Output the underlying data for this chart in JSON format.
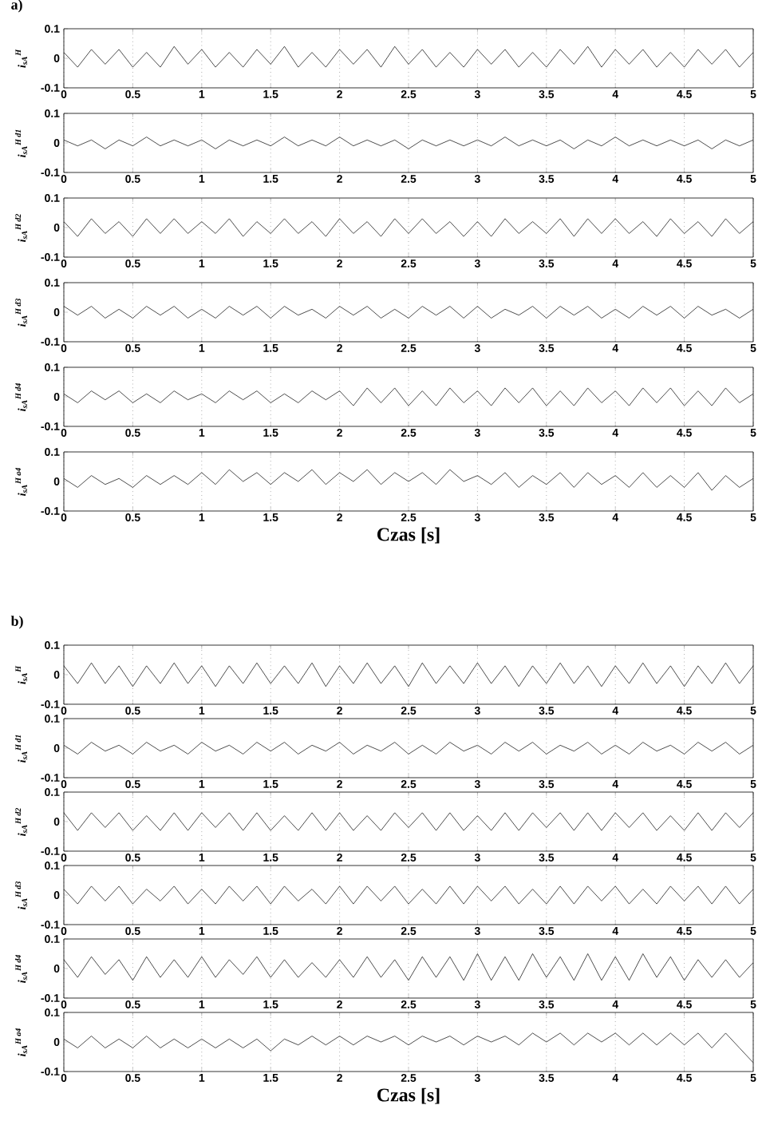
{
  "chart_data": [
    {
      "type": "line",
      "title": "a)",
      "ylabel": "i$_{sA}$$^{H}$",
      "xlim": [
        0,
        5
      ],
      "ylim": [
        -0.1,
        0.1
      ],
      "xticks": [
        0,
        0.5,
        1,
        1.5,
        2,
        2.5,
        3,
        3.5,
        4,
        4.5,
        5
      ],
      "yticks": [
        -0.1,
        0,
        0.1
      ],
      "grid": "x",
      "marker": "none",
      "line_style": "solid",
      "x": [
        0,
        0.1,
        0.2,
        0.3,
        0.4,
        0.5,
        0.6,
        0.7,
        0.8,
        0.9,
        1,
        1.1,
        1.2,
        1.3,
        1.4,
        1.5,
        1.6,
        1.7,
        1.8,
        1.9,
        2,
        2.1,
        2.2,
        2.3,
        2.4,
        2.5,
        2.6,
        2.7,
        2.8,
        2.9,
        3,
        3.1,
        3.2,
        3.3,
        3.4,
        3.5,
        3.6,
        3.7,
        3.8,
        3.9,
        4,
        4.1,
        4.2,
        4.3,
        4.4,
        4.5,
        4.6,
        4.7,
        4.8,
        4.9,
        5
      ],
      "series": [
        {
          "color": "#000000",
          "values": [
            0.02,
            -0.03,
            0.03,
            -0.02,
            0.03,
            -0.03,
            0.02,
            -0.03,
            0.04,
            -0.02,
            0.03,
            -0.03,
            0.02,
            -0.03,
            0.03,
            -0.02,
            0.04,
            -0.03,
            0.02,
            -0.03,
            0.03,
            -0.02,
            0.03,
            -0.03,
            0.04,
            -0.02,
            0.03,
            -0.03,
            0.02,
            -0.03,
            0.03,
            -0.02,
            0.03,
            -0.03,
            0.02,
            -0.03,
            0.03,
            -0.02,
            0.04,
            -0.03,
            0.03,
            -0.02,
            0.03,
            -0.03,
            0.02,
            -0.03,
            0.03,
            -0.02,
            0.03,
            -0.03,
            0.02
          ]
        }
      ]
    },
    {
      "type": "line",
      "ylabel": "i$_{sA}$$^{H d1}$",
      "xlim": [
        0,
        5
      ],
      "ylim": [
        -0.1,
        0.1
      ],
      "xticks": [
        0,
        0.5,
        1,
        1.5,
        2,
        2.5,
        3,
        3.5,
        4,
        4.5,
        5
      ],
      "yticks": [
        -0.1,
        0,
        0.1
      ],
      "grid": "x",
      "marker": "none",
      "line_style": "solid",
      "x": [
        0,
        0.1,
        0.2,
        0.3,
        0.4,
        0.5,
        0.6,
        0.7,
        0.8,
        0.9,
        1,
        1.1,
        1.2,
        1.3,
        1.4,
        1.5,
        1.6,
        1.7,
        1.8,
        1.9,
        2,
        2.1,
        2.2,
        2.3,
        2.4,
        2.5,
        2.6,
        2.7,
        2.8,
        2.9,
        3,
        3.1,
        3.2,
        3.3,
        3.4,
        3.5,
        3.6,
        3.7,
        3.8,
        3.9,
        4,
        4.1,
        4.2,
        4.3,
        4.4,
        4.5,
        4.6,
        4.7,
        4.8,
        4.9,
        5
      ],
      "series": [
        {
          "color": "#000000",
          "values": [
            0.01,
            -0.01,
            0.01,
            -0.02,
            0.01,
            -0.01,
            0.02,
            -0.01,
            0.01,
            -0.01,
            0.01,
            -0.02,
            0.01,
            -0.01,
            0.01,
            -0.01,
            0.02,
            -0.01,
            0.01,
            -0.01,
            0.02,
            -0.01,
            0.01,
            -0.01,
            0.01,
            -0.02,
            0.01,
            -0.01,
            0.01,
            -0.01,
            0.01,
            -0.01,
            0.02,
            -0.01,
            0.01,
            -0.01,
            0.01,
            -0.02,
            0.01,
            -0.01,
            0.02,
            -0.01,
            0.01,
            -0.01,
            0.01,
            -0.01,
            0.01,
            -0.02,
            0.01,
            -0.01,
            0.01
          ]
        }
      ]
    },
    {
      "type": "line",
      "ylabel": "i$_{sA}$$^{H d2}$",
      "xlim": [
        0,
        5
      ],
      "ylim": [
        -0.1,
        0.1
      ],
      "xticks": [
        0,
        0.5,
        1,
        1.5,
        2,
        2.5,
        3,
        3.5,
        4,
        4.5,
        5
      ],
      "yticks": [
        -0.1,
        0,
        0.1
      ],
      "grid": "x",
      "marker": "none",
      "line_style": "solid",
      "x": [
        0,
        0.1,
        0.2,
        0.3,
        0.4,
        0.5,
        0.6,
        0.7,
        0.8,
        0.9,
        1,
        1.1,
        1.2,
        1.3,
        1.4,
        1.5,
        1.6,
        1.7,
        1.8,
        1.9,
        2,
        2.1,
        2.2,
        2.3,
        2.4,
        2.5,
        2.6,
        2.7,
        2.8,
        2.9,
        3,
        3.1,
        3.2,
        3.3,
        3.4,
        3.5,
        3.6,
        3.7,
        3.8,
        3.9,
        4,
        4.1,
        4.2,
        4.3,
        4.4,
        4.5,
        4.6,
        4.7,
        4.8,
        4.9,
        5
      ],
      "series": [
        {
          "color": "#000000",
          "values": [
            0.02,
            -0.03,
            0.03,
            -0.02,
            0.02,
            -0.03,
            0.03,
            -0.02,
            0.03,
            -0.02,
            0.02,
            -0.02,
            0.03,
            -0.03,
            0.02,
            -0.02,
            0.03,
            -0.02,
            0.02,
            -0.03,
            0.03,
            -0.02,
            0.02,
            -0.03,
            0.03,
            -0.02,
            0.03,
            -0.02,
            0.02,
            -0.03,
            0.02,
            -0.03,
            0.03,
            -0.02,
            0.02,
            -0.02,
            0.03,
            -0.03,
            0.03,
            -0.02,
            0.03,
            -0.02,
            0.02,
            -0.03,
            0.03,
            -0.02,
            0.02,
            -0.03,
            0.03,
            -0.02,
            0.02
          ]
        }
      ]
    },
    {
      "type": "line",
      "ylabel": "i$_{sA}$$^{H d3}$",
      "xlim": [
        0,
        5
      ],
      "ylim": [
        -0.1,
        0.1
      ],
      "xticks": [
        0,
        0.5,
        1,
        1.5,
        2,
        2.5,
        3,
        3.5,
        4,
        4.5,
        5
      ],
      "yticks": [
        -0.1,
        0,
        0.1
      ],
      "grid": "x",
      "marker": "none",
      "line_style": "solid",
      "x": [
        0,
        0.1,
        0.2,
        0.3,
        0.4,
        0.5,
        0.6,
        0.7,
        0.8,
        0.9,
        1,
        1.1,
        1.2,
        1.3,
        1.4,
        1.5,
        1.6,
        1.7,
        1.8,
        1.9,
        2,
        2.1,
        2.2,
        2.3,
        2.4,
        2.5,
        2.6,
        2.7,
        2.8,
        2.9,
        3,
        3.1,
        3.2,
        3.3,
        3.4,
        3.5,
        3.6,
        3.7,
        3.8,
        3.9,
        4,
        4.1,
        4.2,
        4.3,
        4.4,
        4.5,
        4.6,
        4.7,
        4.8,
        4.9,
        5
      ],
      "series": [
        {
          "color": "#000000",
          "values": [
            0.02,
            -0.01,
            0.02,
            -0.02,
            0.01,
            -0.02,
            0.02,
            -0.01,
            0.02,
            -0.02,
            0.01,
            -0.02,
            0.02,
            -0.01,
            0.02,
            -0.02,
            0.02,
            -0.01,
            0.01,
            -0.02,
            0.02,
            -0.01,
            0.02,
            -0.02,
            0.01,
            -0.02,
            0.02,
            -0.01,
            0.02,
            -0.02,
            0.02,
            -0.02,
            0.01,
            -0.01,
            0.02,
            -0.02,
            0.02,
            -0.01,
            0.02,
            -0.02,
            0.01,
            -0.02,
            0.02,
            -0.01,
            0.02,
            -0.02,
            0.02,
            -0.01,
            0.01,
            -0.02,
            0.01
          ]
        }
      ]
    },
    {
      "type": "line",
      "ylabel": "i$_{sA}$$^{H d4}$",
      "xlim": [
        0,
        5
      ],
      "ylim": [
        -0.1,
        0.1
      ],
      "xticks": [
        0,
        0.5,
        1,
        1.5,
        2,
        2.5,
        3,
        3.5,
        4,
        4.5,
        5
      ],
      "yticks": [
        -0.1,
        0,
        0.1
      ],
      "grid": "x",
      "marker": "none",
      "line_style": "solid",
      "x": [
        0,
        0.1,
        0.2,
        0.3,
        0.4,
        0.5,
        0.6,
        0.7,
        0.8,
        0.9,
        1,
        1.1,
        1.2,
        1.3,
        1.4,
        1.5,
        1.6,
        1.7,
        1.8,
        1.9,
        2,
        2.1,
        2.2,
        2.3,
        2.4,
        2.5,
        2.6,
        2.7,
        2.8,
        2.9,
        3,
        3.1,
        3.2,
        3.3,
        3.4,
        3.5,
        3.6,
        3.7,
        3.8,
        3.9,
        4,
        4.1,
        4.2,
        4.3,
        4.4,
        4.5,
        4.6,
        4.7,
        4.8,
        4.9,
        5
      ],
      "series": [
        {
          "color": "#000000",
          "values": [
            0.01,
            -0.02,
            0.02,
            -0.01,
            0.02,
            -0.02,
            0.01,
            -0.02,
            0.02,
            -0.01,
            0.01,
            -0.02,
            0.02,
            -0.01,
            0.02,
            -0.02,
            0.01,
            -0.02,
            0.02,
            -0.01,
            0.02,
            -0.03,
            0.03,
            -0.02,
            0.03,
            -0.03,
            0.02,
            -0.03,
            0.03,
            -0.02,
            0.02,
            -0.03,
            0.03,
            -0.02,
            0.03,
            -0.03,
            0.02,
            -0.03,
            0.03,
            -0.02,
            0.02,
            -0.03,
            0.03,
            -0.02,
            0.03,
            -0.03,
            0.02,
            -0.03,
            0.03,
            -0.02,
            0.01
          ]
        }
      ]
    },
    {
      "type": "line",
      "ylabel": "i$_{sA}$$^{H a4}$",
      "xlabel": "Czas [s]",
      "xlim": [
        0,
        5
      ],
      "ylim": [
        -0.1,
        0.1
      ],
      "xticks": [
        0,
        0.5,
        1,
        1.5,
        2,
        2.5,
        3,
        3.5,
        4,
        4.5,
        5
      ],
      "yticks": [
        -0.1,
        0,
        0.1
      ],
      "grid": "x",
      "marker": "none",
      "line_style": "solid",
      "x": [
        0,
        0.1,
        0.2,
        0.3,
        0.4,
        0.5,
        0.6,
        0.7,
        0.8,
        0.9,
        1,
        1.1,
        1.2,
        1.3,
        1.4,
        1.5,
        1.6,
        1.7,
        1.8,
        1.9,
        2,
        2.1,
        2.2,
        2.3,
        2.4,
        2.5,
        2.6,
        2.7,
        2.8,
        2.9,
        3,
        3.1,
        3.2,
        3.3,
        3.4,
        3.5,
        3.6,
        3.7,
        3.8,
        3.9,
        4,
        4.1,
        4.2,
        4.3,
        4.4,
        4.5,
        4.6,
        4.7,
        4.8,
        4.9,
        5
      ],
      "series": [
        {
          "color": "#000000",
          "values": [
            0.01,
            -0.02,
            0.02,
            -0.01,
            0.01,
            -0.02,
            0.02,
            -0.01,
            0.02,
            -0.01,
            0.03,
            -0.01,
            0.04,
            0.0,
            0.03,
            -0.01,
            0.03,
            0.0,
            0.04,
            -0.01,
            0.03,
            0.0,
            0.04,
            -0.01,
            0.03,
            0.0,
            0.03,
            -0.01,
            0.04,
            0.0,
            0.02,
            -0.01,
            0.03,
            -0.02,
            0.02,
            -0.01,
            0.03,
            -0.02,
            0.03,
            -0.01,
            0.02,
            -0.02,
            0.03,
            -0.02,
            0.02,
            -0.02,
            0.03,
            -0.03,
            0.02,
            -0.02,
            0.01
          ]
        }
      ]
    },
    {
      "type": "line",
      "title": "b)",
      "ylabel": "i$_{sA}$$^{H}$",
      "xlim": [
        0,
        5
      ],
      "ylim": [
        -0.1,
        0.1
      ],
      "xticks": [
        0,
        0.5,
        1,
        1.5,
        2,
        2.5,
        3,
        3.5,
        4,
        4.5,
        5
      ],
      "yticks": [
        -0.1,
        0,
        0.1
      ],
      "grid": "x",
      "marker": "none",
      "line_style": "solid",
      "x": [
        0,
        0.1,
        0.2,
        0.3,
        0.4,
        0.5,
        0.6,
        0.7,
        0.8,
        0.9,
        1,
        1.1,
        1.2,
        1.3,
        1.4,
        1.5,
        1.6,
        1.7,
        1.8,
        1.9,
        2,
        2.1,
        2.2,
        2.3,
        2.4,
        2.5,
        2.6,
        2.7,
        2.8,
        2.9,
        3,
        3.1,
        3.2,
        3.3,
        3.4,
        3.5,
        3.6,
        3.7,
        3.8,
        3.9,
        4,
        4.1,
        4.2,
        4.3,
        4.4,
        4.5,
        4.6,
        4.7,
        4.8,
        4.9,
        5
      ],
      "series": [
        {
          "color": "#000000",
          "values": [
            0.03,
            -0.03,
            0.04,
            -0.03,
            0.03,
            -0.04,
            0.03,
            -0.03,
            0.04,
            -0.03,
            0.03,
            -0.04,
            0.03,
            -0.03,
            0.04,
            -0.03,
            0.03,
            -0.03,
            0.04,
            -0.04,
            0.03,
            -0.03,
            0.04,
            -0.03,
            0.03,
            -0.04,
            0.04,
            -0.03,
            0.03,
            -0.03,
            0.04,
            -0.03,
            0.03,
            -0.04,
            0.03,
            -0.03,
            0.04,
            -0.03,
            0.03,
            -0.04,
            0.03,
            -0.03,
            0.04,
            -0.03,
            0.03,
            -0.04,
            0.03,
            -0.03,
            0.04,
            -0.03,
            0.03
          ]
        }
      ]
    },
    {
      "type": "line",
      "ylabel": "i$_{sA}$$^{H d1}$",
      "xlim": [
        0,
        5
      ],
      "ylim": [
        -0.1,
        0.1
      ],
      "xticks": [
        0,
        0.5,
        1,
        1.5,
        2,
        2.5,
        3,
        3.5,
        4,
        4.5,
        5
      ],
      "yticks": [
        -0.1,
        0,
        0.1
      ],
      "grid": "x",
      "marker": "none",
      "line_style": "solid",
      "x": [
        0,
        0.1,
        0.2,
        0.3,
        0.4,
        0.5,
        0.6,
        0.7,
        0.8,
        0.9,
        1,
        1.1,
        1.2,
        1.3,
        1.4,
        1.5,
        1.6,
        1.7,
        1.8,
        1.9,
        2,
        2.1,
        2.2,
        2.3,
        2.4,
        2.5,
        2.6,
        2.7,
        2.8,
        2.9,
        3,
        3.1,
        3.2,
        3.3,
        3.4,
        3.5,
        3.6,
        3.7,
        3.8,
        3.9,
        4,
        4.1,
        4.2,
        4.3,
        4.4,
        4.5,
        4.6,
        4.7,
        4.8,
        4.9,
        5
      ],
      "series": [
        {
          "color": "#000000",
          "values": [
            0.01,
            -0.02,
            0.02,
            -0.01,
            0.01,
            -0.02,
            0.02,
            -0.01,
            0.01,
            -0.02,
            0.02,
            -0.01,
            0.01,
            -0.02,
            0.02,
            -0.01,
            0.02,
            -0.02,
            0.01,
            -0.01,
            0.02,
            -0.02,
            0.01,
            -0.01,
            0.02,
            -0.02,
            0.01,
            -0.02,
            0.02,
            -0.01,
            0.01,
            -0.02,
            0.02,
            -0.01,
            0.02,
            -0.02,
            0.01,
            -0.01,
            0.02,
            -0.02,
            0.01,
            -0.02,
            0.02,
            -0.01,
            0.01,
            -0.02,
            0.02,
            -0.01,
            0.02,
            -0.02,
            0.01
          ]
        }
      ]
    },
    {
      "type": "line",
      "ylabel": "i$_{sA}$$^{H d2}$",
      "xlim": [
        0,
        5
      ],
      "ylim": [
        -0.1,
        0.1
      ],
      "xticks": [
        0,
        0.5,
        1,
        1.5,
        2,
        2.5,
        3,
        3.5,
        4,
        4.5,
        5
      ],
      "yticks": [
        -0.1,
        0,
        0.1
      ],
      "grid": "x",
      "marker": "none",
      "line_style": "solid",
      "x": [
        0,
        0.1,
        0.2,
        0.3,
        0.4,
        0.5,
        0.6,
        0.7,
        0.8,
        0.9,
        1,
        1.1,
        1.2,
        1.3,
        1.4,
        1.5,
        1.6,
        1.7,
        1.8,
        1.9,
        2,
        2.1,
        2.2,
        2.3,
        2.4,
        2.5,
        2.6,
        2.7,
        2.8,
        2.9,
        3,
        3.1,
        3.2,
        3.3,
        3.4,
        3.5,
        3.6,
        3.7,
        3.8,
        3.9,
        4,
        4.1,
        4.2,
        4.3,
        4.4,
        4.5,
        4.6,
        4.7,
        4.8,
        4.9,
        5
      ],
      "series": [
        {
          "color": "#000000",
          "values": [
            0.03,
            -0.03,
            0.03,
            -0.02,
            0.03,
            -0.03,
            0.02,
            -0.03,
            0.03,
            -0.03,
            0.03,
            -0.02,
            0.03,
            -0.03,
            0.03,
            -0.03,
            0.02,
            -0.03,
            0.03,
            -0.03,
            0.03,
            -0.03,
            0.02,
            -0.03,
            0.03,
            -0.02,
            0.03,
            -0.03,
            0.03,
            -0.03,
            0.02,
            -0.03,
            0.03,
            -0.03,
            0.03,
            -0.02,
            0.03,
            -0.03,
            0.03,
            -0.03,
            0.03,
            -0.02,
            0.03,
            -0.03,
            0.02,
            -0.03,
            0.03,
            -0.03,
            0.03,
            -0.02,
            0.03
          ]
        }
      ]
    },
    {
      "type": "line",
      "ylabel": "i$_{sA}$$^{H d3}$",
      "xlim": [
        0,
        5
      ],
      "ylim": [
        -0.1,
        0.1
      ],
      "xticks": [
        0,
        0.5,
        1,
        1.5,
        2,
        2.5,
        3,
        3.5,
        4,
        4.5,
        5
      ],
      "yticks": [
        -0.1,
        0,
        0.1
      ],
      "grid": "x",
      "marker": "none",
      "line_style": "solid",
      "x": [
        0,
        0.1,
        0.2,
        0.3,
        0.4,
        0.5,
        0.6,
        0.7,
        0.8,
        0.9,
        1,
        1.1,
        1.2,
        1.3,
        1.4,
        1.5,
        1.6,
        1.7,
        1.8,
        1.9,
        2,
        2.1,
        2.2,
        2.3,
        2.4,
        2.5,
        2.6,
        2.7,
        2.8,
        2.9,
        3,
        3.1,
        3.2,
        3.3,
        3.4,
        3.5,
        3.6,
        3.7,
        3.8,
        3.9,
        4,
        4.1,
        4.2,
        4.3,
        4.4,
        4.5,
        4.6,
        4.7,
        4.8,
        4.9,
        5
      ],
      "series": [
        {
          "color": "#000000",
          "values": [
            0.02,
            -0.03,
            0.03,
            -0.02,
            0.03,
            -0.03,
            0.02,
            -0.02,
            0.03,
            -0.03,
            0.02,
            -0.03,
            0.03,
            -0.02,
            0.03,
            -0.03,
            0.03,
            -0.02,
            0.02,
            -0.03,
            0.03,
            -0.03,
            0.03,
            -0.02,
            0.03,
            -0.03,
            0.02,
            -0.03,
            0.03,
            -0.03,
            0.03,
            -0.02,
            0.03,
            -0.03,
            0.02,
            -0.03,
            0.03,
            -0.03,
            0.03,
            -0.02,
            0.03,
            -0.03,
            0.02,
            -0.03,
            0.03,
            -0.02,
            0.03,
            -0.03,
            0.03,
            -0.03,
            0.02
          ]
        }
      ]
    },
    {
      "type": "line",
      "ylabel": "i$_{sA}$$^{H d4}$",
      "xlim": [
        0,
        5
      ],
      "ylim": [
        -0.1,
        0.1
      ],
      "xticks": [
        0,
        0.5,
        1,
        1.5,
        2,
        2.5,
        3,
        3.5,
        4,
        4.5,
        5
      ],
      "yticks": [
        -0.1,
        0,
        0.1
      ],
      "grid": "x",
      "marker": "none",
      "line_style": "solid",
      "x": [
        0,
        0.1,
        0.2,
        0.3,
        0.4,
        0.5,
        0.6,
        0.7,
        0.8,
        0.9,
        1,
        1.1,
        1.2,
        1.3,
        1.4,
        1.5,
        1.6,
        1.7,
        1.8,
        1.9,
        2,
        2.1,
        2.2,
        2.3,
        2.4,
        2.5,
        2.6,
        2.7,
        2.8,
        2.9,
        3,
        3.1,
        3.2,
        3.3,
        3.4,
        3.5,
        3.6,
        3.7,
        3.8,
        3.9,
        4,
        4.1,
        4.2,
        4.3,
        4.4,
        4.5,
        4.6,
        4.7,
        4.8,
        4.9,
        5
      ],
      "series": [
        {
          "color": "#000000",
          "values": [
            0.03,
            -0.03,
            0.04,
            -0.02,
            0.03,
            -0.04,
            0.04,
            -0.03,
            0.03,
            -0.03,
            0.04,
            -0.03,
            0.03,
            -0.02,
            0.04,
            -0.03,
            0.03,
            -0.03,
            0.02,
            -0.03,
            0.03,
            -0.03,
            0.04,
            -0.03,
            0.03,
            -0.04,
            0.04,
            -0.03,
            0.04,
            -0.04,
            0.05,
            -0.04,
            0.04,
            -0.04,
            0.05,
            -0.03,
            0.04,
            -0.04,
            0.05,
            -0.04,
            0.04,
            -0.04,
            0.05,
            -0.03,
            0.04,
            -0.04,
            0.03,
            -0.03,
            0.03,
            -0.03,
            0.02
          ]
        }
      ]
    },
    {
      "type": "line",
      "ylabel": "i$_{sA}$$^{H a4}$",
      "xlabel": "Czas [s]",
      "xlim": [
        0,
        5
      ],
      "ylim": [
        -0.1,
        0.1
      ],
      "xticks": [
        0,
        0.5,
        1,
        1.5,
        2,
        2.5,
        3,
        3.5,
        4,
        4.5,
        5
      ],
      "yticks": [
        -0.1,
        0,
        0.1
      ],
      "grid": "x",
      "marker": "none",
      "line_style": "solid",
      "x": [
        0,
        0.1,
        0.2,
        0.3,
        0.4,
        0.5,
        0.6,
        0.7,
        0.8,
        0.9,
        1,
        1.1,
        1.2,
        1.3,
        1.4,
        1.5,
        1.6,
        1.7,
        1.8,
        1.9,
        2,
        2.1,
        2.2,
        2.3,
        2.4,
        2.5,
        2.6,
        2.7,
        2.8,
        2.9,
        3,
        3.1,
        3.2,
        3.3,
        3.4,
        3.5,
        3.6,
        3.7,
        3.8,
        3.9,
        4,
        4.1,
        4.2,
        4.3,
        4.4,
        4.5,
        4.6,
        4.7,
        4.8,
        4.9,
        5
      ],
      "series": [
        {
          "color": "#000000",
          "values": [
            0.01,
            -0.02,
            0.02,
            -0.02,
            0.01,
            -0.02,
            0.02,
            -0.02,
            0.01,
            -0.02,
            0.01,
            -0.02,
            0.01,
            -0.02,
            0.01,
            -0.03,
            0.01,
            -0.01,
            0.02,
            -0.01,
            0.02,
            -0.01,
            0.02,
            0.0,
            0.02,
            -0.01,
            0.02,
            0.0,
            0.02,
            -0.01,
            0.02,
            0.0,
            0.02,
            -0.01,
            0.03,
            0.0,
            0.03,
            -0.01,
            0.03,
            0.0,
            0.03,
            -0.01,
            0.03,
            -0.01,
            0.03,
            -0.01,
            0.03,
            -0.02,
            0.03,
            -0.02,
            -0.07
          ]
        }
      ]
    }
  ]
}
